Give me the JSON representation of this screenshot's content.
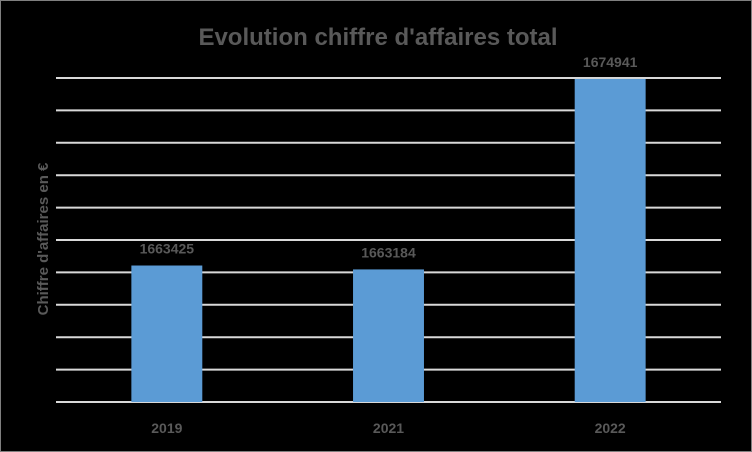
{
  "chart_data": {
    "type": "bar",
    "title": "Evolution chiffre d'affaires total",
    "xlabel": "",
    "ylabel": "Chiffre d'affaires en €",
    "categories": [
      "2019",
      "2021",
      "2022"
    ],
    "series": [
      {
        "values": [
          1663425,
          1663184,
          1674941
        ]
      }
    ],
    "data_labels": [
      "1663425",
      "1663184",
      "1674941"
    ],
    "ylim": [
      1655000,
      1675000
    ],
    "grid": true,
    "legend": "none",
    "colors": {
      "bar": "#5b9bd5",
      "background": "#000000",
      "text": "#595959",
      "grid": "#d9d9d9"
    }
  }
}
